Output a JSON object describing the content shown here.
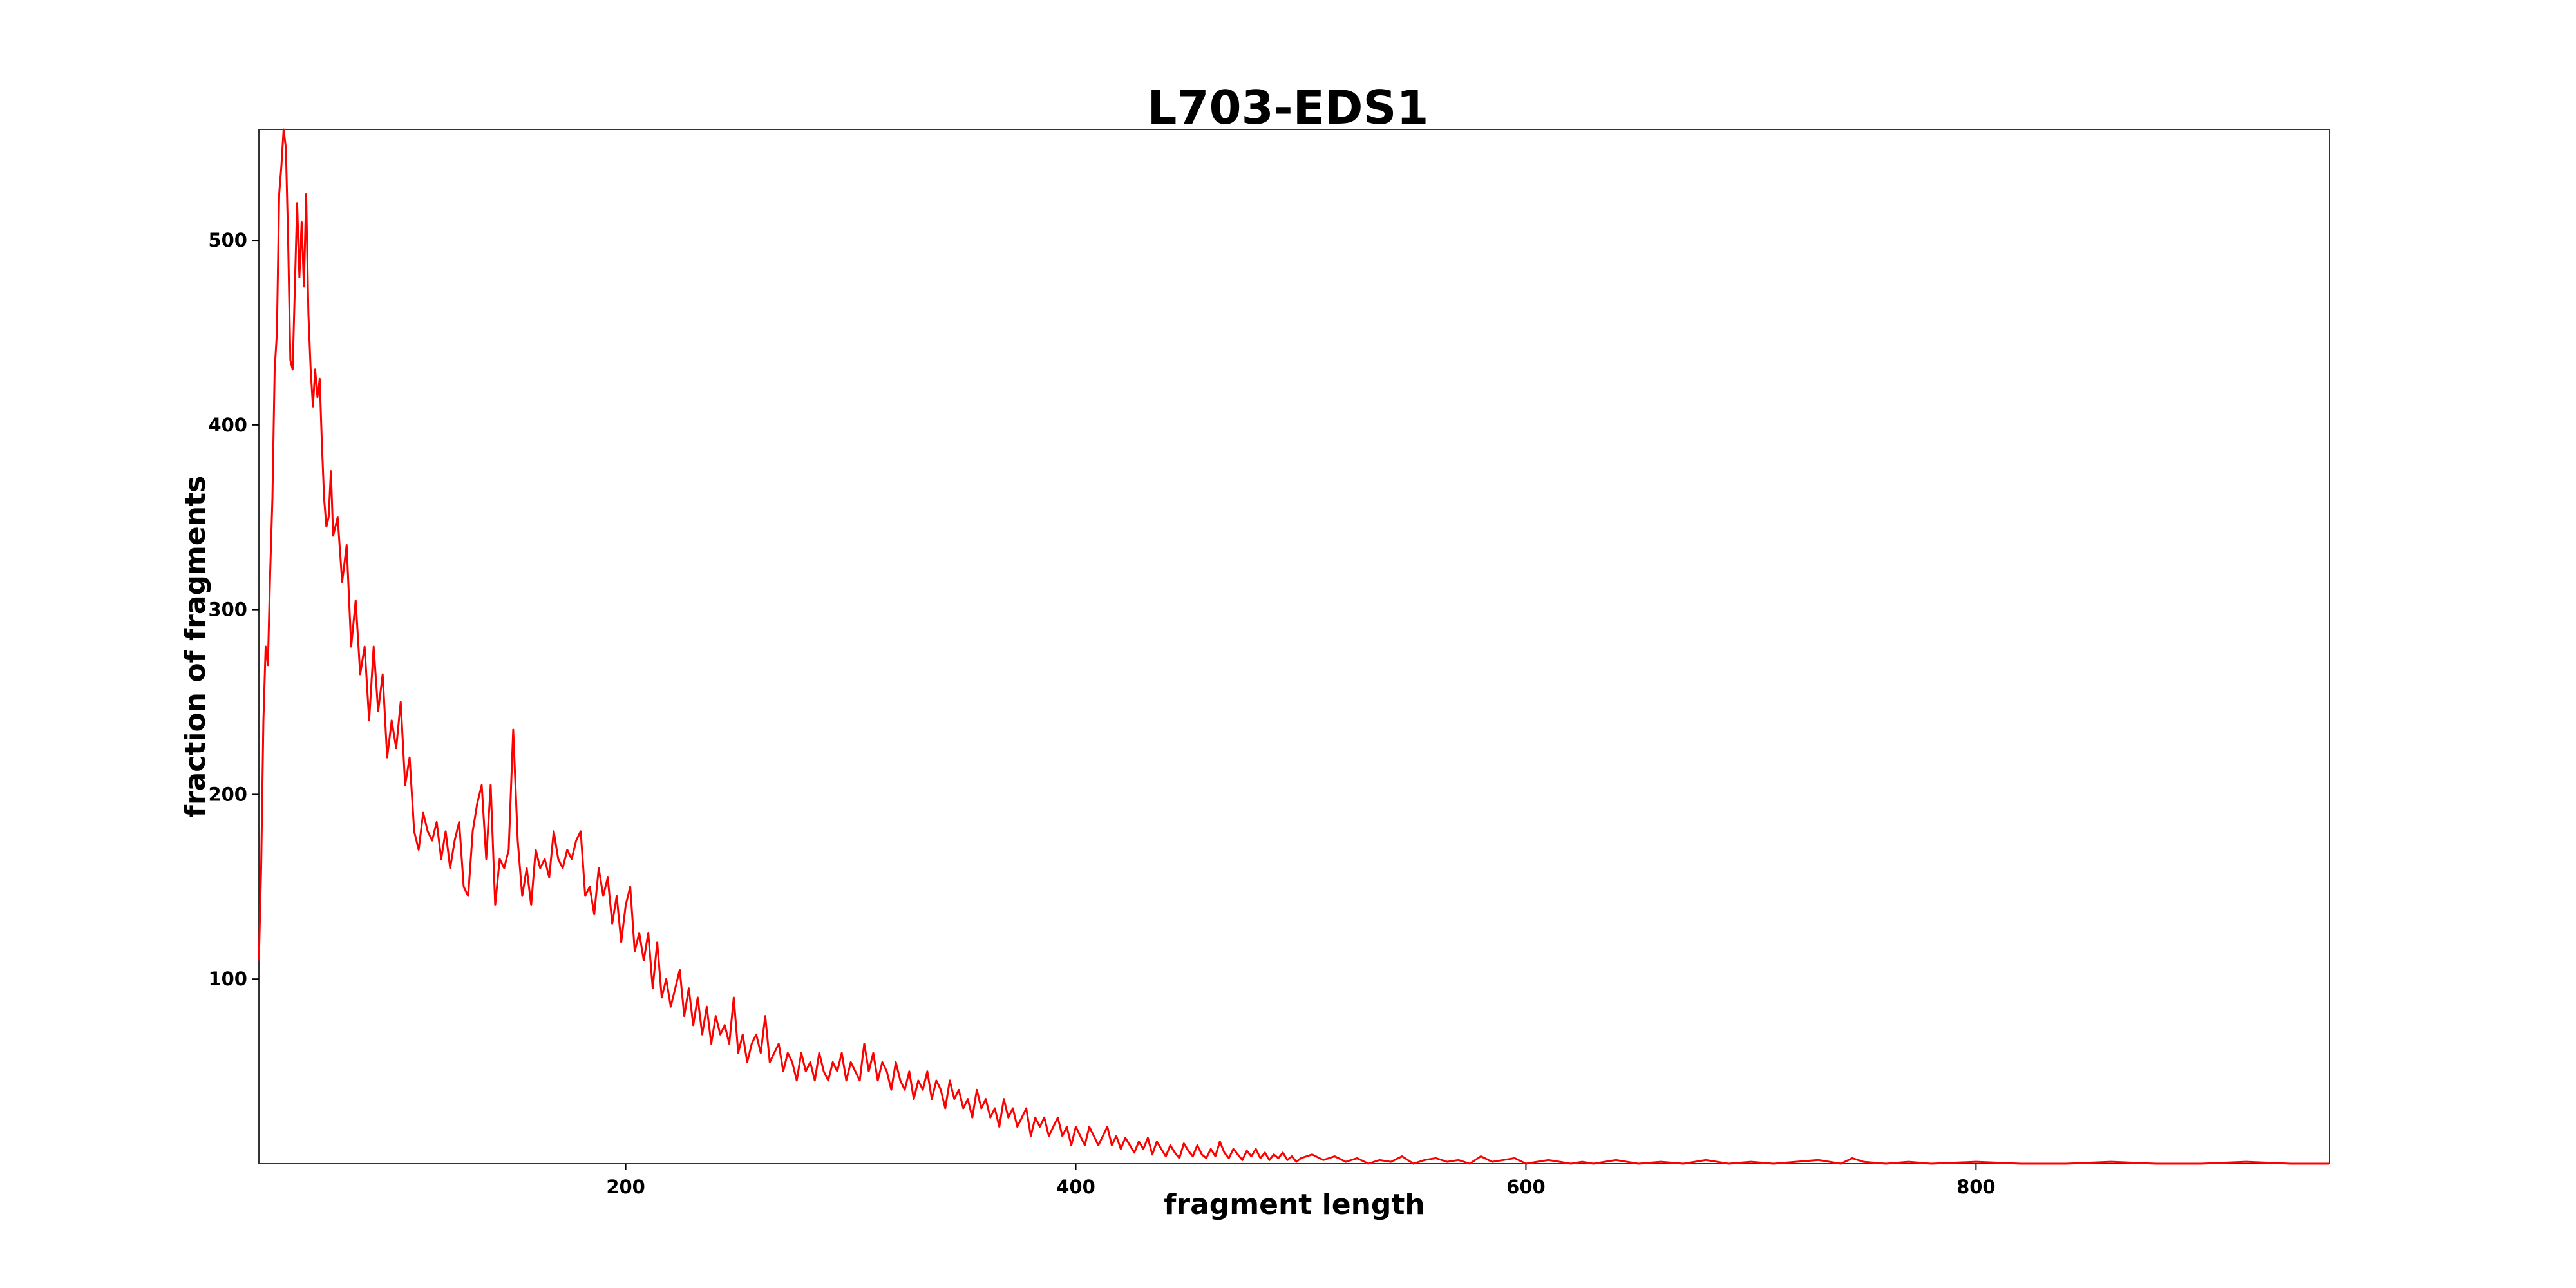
{
  "chart_data": {
    "type": "line",
    "title": "L703-EDS1",
    "xlabel": "fragment length",
    "ylabel": "fraction of fragments",
    "xlim": [
      37,
      957
    ],
    "ylim": [
      0,
      560
    ],
    "x_ticks": [
      200,
      400,
      600,
      800
    ],
    "y_ticks": [
      100,
      200,
      300,
      400,
      500
    ],
    "grid": false,
    "legend": "none",
    "series": [
      {
        "color": "#ff0000",
        "x": [
          37,
          38,
          39,
          40,
          41,
          42,
          43,
          44,
          45,
          46,
          47,
          48,
          49,
          50,
          51,
          52,
          53,
          54,
          55,
          56,
          57,
          58,
          59,
          60,
          61,
          62,
          63,
          64,
          65,
          66,
          67,
          68,
          69,
          70,
          72,
          74,
          76,
          78,
          80,
          82,
          84,
          86,
          88,
          90,
          92,
          94,
          96,
          98,
          100,
          102,
          104,
          106,
          108,
          110,
          112,
          114,
          116,
          118,
          120,
          122,
          124,
          126,
          128,
          130,
          132,
          134,
          136,
          138,
          140,
          142,
          144,
          146,
          148,
          150,
          152,
          154,
          156,
          158,
          160,
          162,
          164,
          166,
          168,
          170,
          172,
          174,
          176,
          178,
          180,
          182,
          184,
          186,
          188,
          190,
          192,
          194,
          196,
          198,
          200,
          202,
          204,
          206,
          208,
          210,
          212,
          214,
          216,
          218,
          220,
          222,
          224,
          226,
          228,
          230,
          232,
          234,
          236,
          238,
          240,
          242,
          244,
          246,
          248,
          250,
          252,
          254,
          256,
          258,
          260,
          262,
          264,
          266,
          268,
          270,
          272,
          274,
          276,
          278,
          280,
          282,
          284,
          286,
          288,
          290,
          292,
          294,
          296,
          298,
          300,
          302,
          304,
          306,
          308,
          310,
          312,
          314,
          316,
          318,
          320,
          322,
          324,
          326,
          328,
          330,
          332,
          334,
          336,
          338,
          340,
          342,
          344,
          346,
          348,
          350,
          352,
          354,
          356,
          358,
          360,
          362,
          364,
          366,
          368,
          370,
          372,
          374,
          376,
          378,
          380,
          382,
          384,
          386,
          388,
          390,
          392,
          394,
          396,
          398,
          400,
          402,
          404,
          406,
          408,
          410,
          412,
          414,
          416,
          418,
          420,
          422,
          424,
          426,
          428,
          430,
          432,
          434,
          436,
          438,
          440,
          442,
          444,
          446,
          448,
          450,
          452,
          454,
          456,
          458,
          460,
          462,
          464,
          466,
          468,
          470,
          472,
          474,
          476,
          478,
          480,
          482,
          484,
          486,
          488,
          490,
          492,
          494,
          496,
          498,
          500,
          505,
          510,
          515,
          520,
          525,
          530,
          535,
          540,
          545,
          550,
          555,
          560,
          565,
          570,
          575,
          580,
          585,
          590,
          595,
          600,
          605,
          610,
          615,
          620,
          625,
          630,
          640,
          650,
          660,
          670,
          680,
          690,
          700,
          710,
          720,
          730,
          740,
          745,
          750,
          760,
          770,
          780,
          800,
          820,
          840,
          860,
          880,
          900,
          920,
          940,
          957
        ],
        "y": [
          110,
          160,
          240,
          280,
          270,
          320,
          360,
          430,
          450,
          525,
          540,
          560,
          550,
          500,
          435,
          430,
          475,
          520,
          480,
          510,
          475,
          525,
          460,
          430,
          410,
          430,
          415,
          425,
          390,
          360,
          345,
          350,
          375,
          340,
          350,
          315,
          335,
          280,
          305,
          265,
          280,
          240,
          280,
          245,
          265,
          220,
          240,
          225,
          250,
          205,
          220,
          180,
          170,
          190,
          180,
          175,
          185,
          165,
          180,
          160,
          175,
          185,
          150,
          145,
          180,
          195,
          205,
          165,
          205,
          140,
          165,
          160,
          170,
          235,
          175,
          145,
          160,
          140,
          170,
          160,
          165,
          155,
          180,
          165,
          160,
          170,
          165,
          175,
          180,
          145,
          150,
          135,
          160,
          145,
          155,
          130,
          145,
          120,
          140,
          150,
          115,
          125,
          110,
          125,
          95,
          120,
          90,
          100,
          85,
          95,
          105,
          80,
          95,
          75,
          90,
          70,
          85,
          65,
          80,
          70,
          75,
          65,
          90,
          60,
          70,
          55,
          65,
          70,
          60,
          80,
          55,
          60,
          65,
          50,
          60,
          55,
          45,
          60,
          50,
          55,
          45,
          60,
          50,
          45,
          55,
          50,
          60,
          45,
          55,
          50,
          45,
          65,
          50,
          60,
          45,
          55,
          50,
          40,
          55,
          45,
          40,
          50,
          35,
          45,
          40,
          50,
          35,
          45,
          40,
          30,
          45,
          35,
          40,
          30,
          35,
          25,
          40,
          30,
          35,
          25,
          30,
          20,
          35,
          25,
          30,
          20,
          25,
          30,
          15,
          25,
          20,
          25,
          15,
          20,
          25,
          15,
          20,
          10,
          20,
          15,
          10,
          20,
          15,
          10,
          15,
          20,
          10,
          15,
          8,
          14,
          10,
          6,
          12,
          8,
          14,
          5,
          12,
          8,
          4,
          10,
          6,
          3,
          11,
          7,
          4,
          10,
          5,
          3,
          8,
          4,
          12,
          6,
          3,
          8,
          5,
          2,
          7,
          4,
          8,
          3,
          6,
          2,
          5,
          3,
          6,
          2,
          4,
          1,
          3,
          5,
          2,
          4,
          1,
          3,
          0,
          2,
          1,
          4,
          0,
          2,
          3,
          1,
          2,
          0,
          4,
          1,
          2,
          3,
          0,
          1,
          2,
          1,
          0,
          1,
          0,
          2,
          0,
          1,
          0,
          2,
          0,
          1,
          0,
          1,
          2,
          0,
          3,
          1,
          0,
          1,
          0,
          1,
          0,
          0,
          1,
          0,
          0,
          1,
          0,
          0
        ]
      }
    ]
  }
}
